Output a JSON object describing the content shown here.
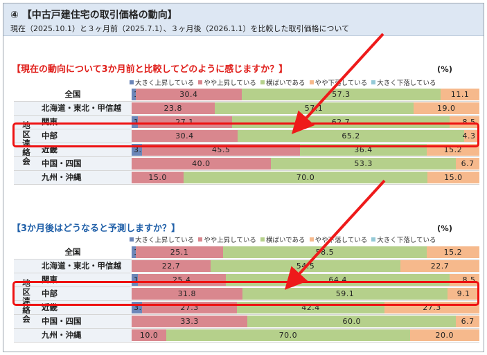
{
  "header": {
    "title": "④ 【中古戸建住宅の取引価格の動向】",
    "subtitle": "現在（2025.10.1）と３ヶ月前（2025.7.1）、３ヶ月後（2026.1.1）を比較した取引価格について"
  },
  "unit": "(%)",
  "region_group_label": "地区連絡会",
  "legend": [
    {
      "label": "大きく上昇している",
      "color": "#6b86b8"
    },
    {
      "label": "やや上昇している",
      "color": "#d9878e"
    },
    {
      "label": "横ばいである",
      "color": "#b5d08b"
    },
    {
      "label": "やや下落している",
      "color": "#f6b98c"
    },
    {
      "label": "大きく下落している",
      "color": "#94c9d6"
    }
  ],
  "chart_data": [
    {
      "type": "bar",
      "orientation": "horizontal",
      "stacked": true,
      "title": "【現在の動向について3か月前と比較してどのように感じますか？】",
      "categories": [
        "全国",
        "北海道・東北・甲信越",
        "関東",
        "中部",
        "近畿",
        "中国・四国",
        "九州・沖縄"
      ],
      "series": [
        {
          "name": "大きく上昇している",
          "values": [
            1.2,
            0,
            1.7,
            0,
            3.0,
            0,
            0
          ]
        },
        {
          "name": "やや上昇している",
          "values": [
            30.4,
            23.8,
            27.1,
            30.4,
            45.5,
            40.0,
            15.0
          ]
        },
        {
          "name": "横ばいである",
          "values": [
            57.3,
            57.1,
            62.7,
            65.2,
            36.4,
            53.3,
            70.0
          ]
        },
        {
          "name": "やや下落している",
          "values": [
            11.1,
            19.0,
            8.5,
            4.3,
            15.2,
            6.7,
            15.0
          ]
        },
        {
          "name": "大きく下落している",
          "values": [
            0,
            0,
            0,
            0,
            0,
            0,
            0
          ]
        }
      ],
      "labels": [
        [
          "1.2",
          "30.4",
          "57.3",
          "11.1",
          ""
        ],
        [
          "",
          "23.8",
          "57.1",
          "19.0",
          ""
        ],
        [
          "1.7",
          "27.1",
          "62.7",
          "8.5",
          ""
        ],
        [
          "",
          "30.4",
          "65.2",
          "4.3",
          ""
        ],
        [
          "3.0",
          "45.5",
          "36.4",
          "15.2",
          ""
        ],
        [
          "",
          "40.0",
          "53.3",
          "6.7",
          ""
        ],
        [
          "",
          "15.0",
          "70.0",
          "15.0",
          ""
        ]
      ],
      "xlim": [
        0,
        100
      ],
      "highlighted_category": "中部"
    },
    {
      "type": "bar",
      "orientation": "horizontal",
      "stacked": true,
      "title": "【3か月後はどうなると予測しますか？】",
      "categories": [
        "全国",
        "北海道・東北・甲信越",
        "関東",
        "中部",
        "近畿",
        "中国・四国",
        "九州・沖縄"
      ],
      "series": [
        {
          "name": "大きく上昇している",
          "values": [
            1.2,
            0,
            1.7,
            0,
            3.0,
            0,
            0
          ]
        },
        {
          "name": "やや上昇している",
          "values": [
            25.1,
            22.7,
            25.4,
            31.8,
            27.3,
            33.3,
            10.0
          ]
        },
        {
          "name": "横ばいである",
          "values": [
            58.5,
            54.5,
            64.4,
            59.1,
            42.4,
            60.0,
            70.0
          ]
        },
        {
          "name": "やや下落している",
          "values": [
            15.2,
            22.7,
            8.5,
            9.1,
            27.3,
            6.7,
            20.0
          ]
        },
        {
          "name": "大きく下落している",
          "values": [
            0,
            0,
            0,
            0,
            0,
            0,
            0
          ]
        }
      ],
      "labels": [
        [
          "1.2",
          "25.1",
          "58.5",
          "15.2",
          ""
        ],
        [
          "",
          "22.7",
          "54.5",
          "22.7",
          ""
        ],
        [
          "1.7",
          "25.4",
          "64.4",
          "8.5",
          ""
        ],
        [
          "",
          "31.8",
          "59.1",
          "9.1",
          ""
        ],
        [
          "3.0",
          "27.3",
          "42.4",
          "27.3",
          ""
        ],
        [
          "",
          "33.3",
          "60.0",
          "6.7",
          ""
        ],
        [
          "",
          "10.0",
          "70.0",
          "20.0",
          ""
        ]
      ],
      "xlim": [
        0,
        100
      ],
      "highlighted_category": "中部"
    }
  ]
}
